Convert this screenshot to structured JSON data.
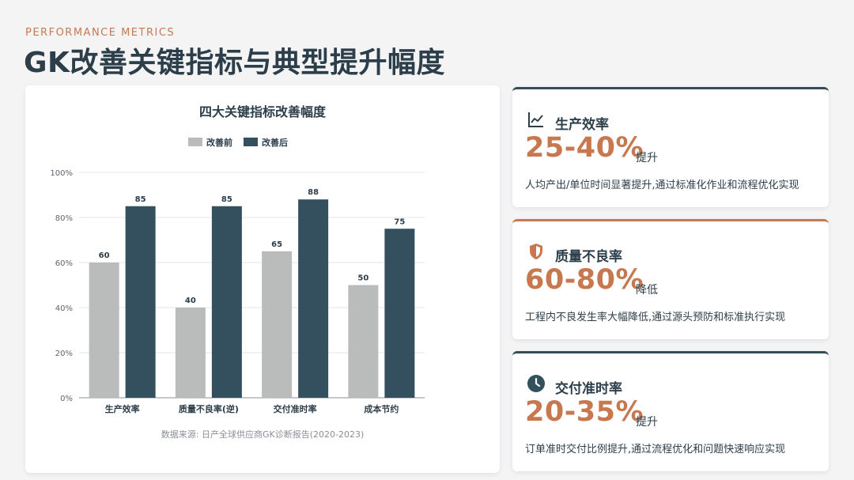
{
  "header": {
    "eyebrow": "PERFORMANCE METRICS",
    "title": "GK改善关键指标与典型提升幅度"
  },
  "chart_data": {
    "type": "bar",
    "title": "四大关键指标改善幅度",
    "categories": [
      "生产效率",
      "质量不良率(逆)",
      "交付准时率",
      "成本节约"
    ],
    "series": [
      {
        "name": "改善前",
        "values": [
          60,
          40,
          65,
          50
        ],
        "color": "#b9bcba"
      },
      {
        "name": "改善后",
        "values": [
          85,
          85,
          88,
          75
        ],
        "color": "#34505f"
      }
    ],
    "ylim": [
      0,
      100
    ],
    "yticks": [
      "0%",
      "20%",
      "40%",
      "60%",
      "80%",
      "100%"
    ],
    "legend_position": "top",
    "grid": true,
    "source": "数据来源: 日产全球供应商GK诊断报告(2020-2023)"
  },
  "metrics": [
    {
      "icon": "line-chart-icon",
      "title": "生产效率",
      "value": "25-40%",
      "unit": "提升",
      "desc": "人均产出/单位时间显著提升,通过标准化作业和流程优化实现"
    },
    {
      "icon": "shield-icon",
      "title": "质量不良率",
      "value": "60-80%",
      "unit": "降低",
      "desc": "工程内不良发生率大幅降低,通过源头预防和标准执行实现"
    },
    {
      "icon": "clock-icon",
      "title": "交付准时率",
      "value": "20-35%",
      "unit": "提升",
      "desc": "订单准时交付比例提升,通过流程优化和问题快速响应实现"
    }
  ],
  "colors": {
    "accent": "#c7784f",
    "dark": "#34505f",
    "gray": "#b9bcba"
  }
}
